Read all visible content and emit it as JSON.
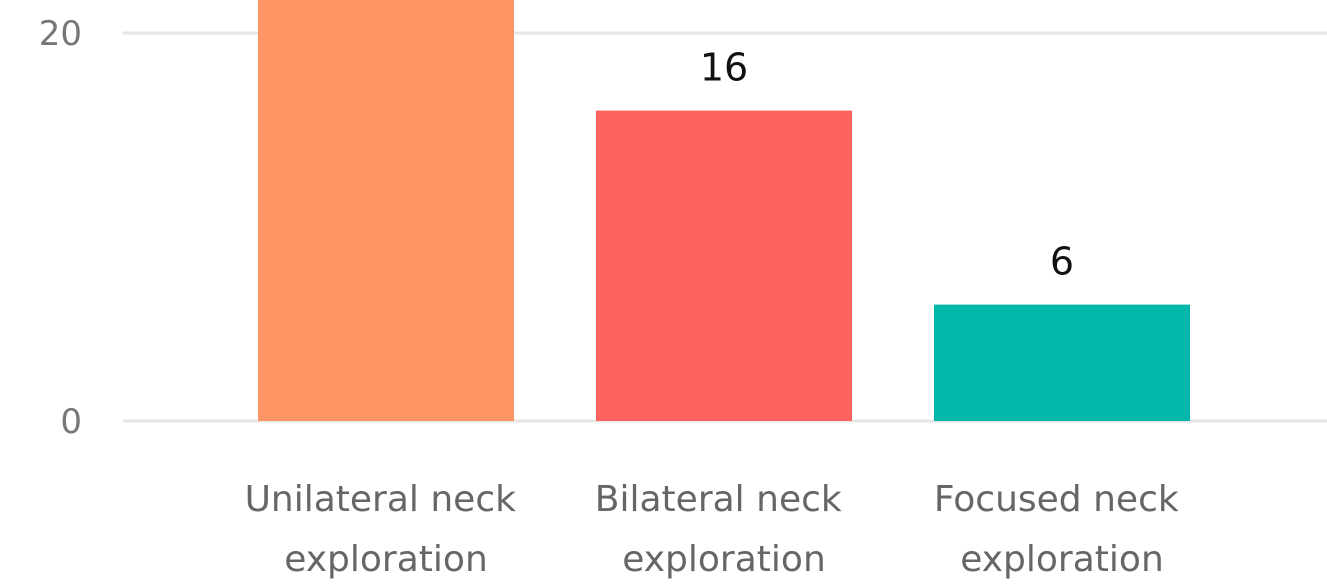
{
  "chart_data": {
    "type": "bar",
    "categories": [
      "Unilateral neck exploration",
      "Bilateral neck exploration",
      "Focused neck exploration"
    ],
    "values": [
      22,
      16,
      6
    ],
    "colors": [
      "#fe9666",
      "#fd625e",
      "#01b8aa"
    ],
    "ylim": [
      0,
      21.7
    ],
    "yticks": [
      0,
      20
    ],
    "grid": true,
    "data_labels": true
  }
}
